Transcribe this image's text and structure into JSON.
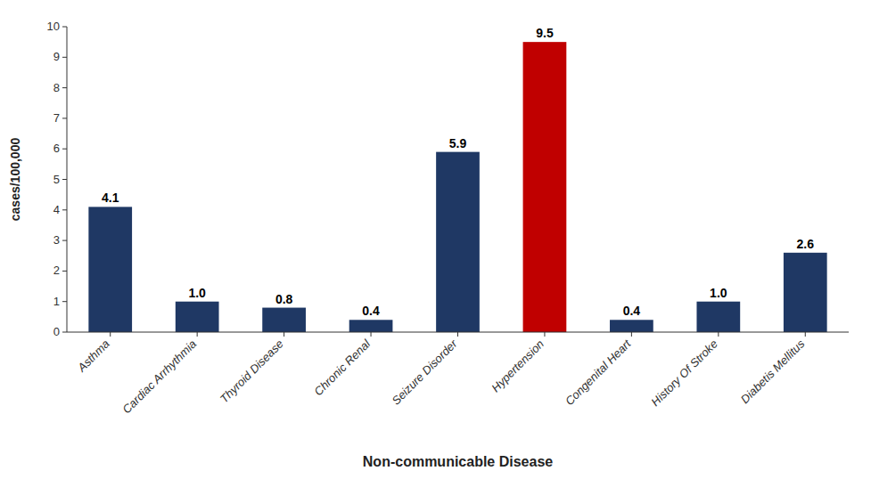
{
  "chart_data": {
    "type": "bar",
    "categories": [
      "Asthma",
      "Cardiac Arrhythmia",
      "Thyroid Disease",
      "Chronic Renal",
      "Seizure Disorder",
      "Hypertension",
      "Congenital Heart",
      "History Of Stroke",
      "Diabetis Mellitus"
    ],
    "values": [
      4.1,
      1.0,
      0.8,
      0.4,
      5.9,
      9.5,
      0.4,
      1.0,
      2.6
    ],
    "value_labels": [
      "4.1",
      "1.0",
      "0.8",
      "0.4",
      "5.9",
      "9.5",
      "0.4",
      "1.0",
      "2.6"
    ],
    "colors": [
      "#1F3864",
      "#1F3864",
      "#1F3864",
      "#1F3864",
      "#1F3864",
      "#C00000",
      "#1F3864",
      "#1F3864",
      "#1F3864"
    ],
    "xlabel": "Non-communicable Disease",
    "ylabel": "cases/100,000",
    "ylim": [
      0,
      10
    ],
    "yticks": [
      0,
      1,
      2,
      3,
      4,
      5,
      6,
      7,
      8,
      9,
      10
    ],
    "grid": false,
    "data_labels": true
  }
}
